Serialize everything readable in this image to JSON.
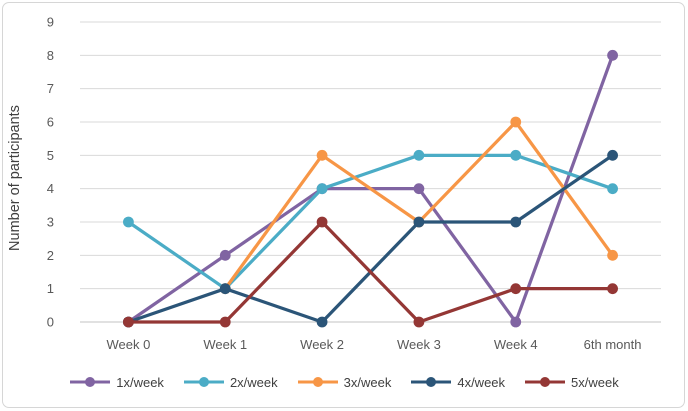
{
  "chart_data": {
    "type": "line",
    "title": "",
    "xlabel": "",
    "ylabel": "Number of participants",
    "categories": [
      "Week 0",
      "Week 1",
      "Week 2",
      "Week 3",
      "Week 4",
      "6th month"
    ],
    "series": [
      {
        "name": "1x/week",
        "color": "#8064A2",
        "values": [
          0,
          2,
          4,
          4,
          0,
          8
        ]
      },
      {
        "name": "2x/week",
        "color": "#4BACC6",
        "values": [
          3,
          1,
          4,
          5,
          5,
          4
        ]
      },
      {
        "name": "3x/week",
        "color": "#F79646",
        "values": [
          null,
          1,
          5,
          3,
          6,
          2
        ]
      },
      {
        "name": "4x/week",
        "color": "#2B5578",
        "values": [
          0,
          1,
          0,
          3,
          3,
          5
        ]
      },
      {
        "name": "5x/week",
        "color": "#943735",
        "values": [
          0,
          0,
          3,
          0,
          1,
          1
        ]
      }
    ],
    "ylim": [
      0,
      9
    ],
    "y_ticks": [
      0,
      1,
      2,
      3,
      4,
      5,
      6,
      7,
      8,
      9
    ],
    "grid": true,
    "legend_position": "bottom",
    "colors": {
      "gridline": "#d9d9d9",
      "axis_line": "#c3c3c3",
      "tick_label": "#595959",
      "axis_title": "#404040",
      "legend_text": "#404040",
      "frame_border": "#d6d6d6",
      "background": "#ffffff"
    }
  }
}
